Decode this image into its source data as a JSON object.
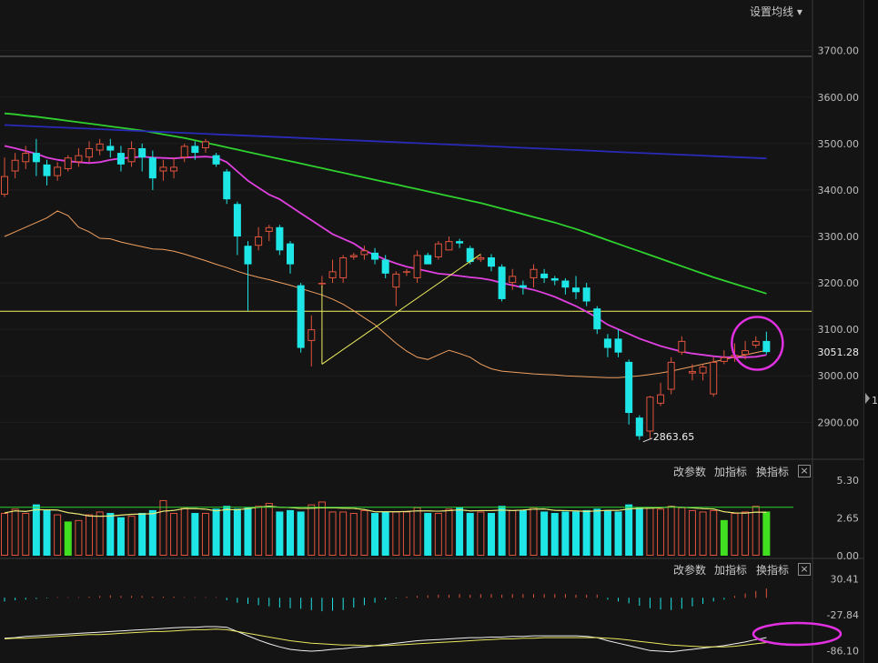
{
  "toolbar": {
    "ma_settings": "设置均线",
    "modify_params": "改参数",
    "add_indicator": "加指标",
    "switch_indicator": "换指标",
    "close": "×"
  },
  "colors": {
    "up": "#e0533d",
    "down": "#1ee6e6",
    "ma5": "#f0a060",
    "ma20": "#e040e0",
    "ma120": "#2ed12e",
    "ma250": "#2a2ab8",
    "annotation": "#e030e0",
    "trendline": "#f0f060",
    "green_bar": "#40e020"
  },
  "chart_data": [
    {
      "type": "candlestick",
      "y_ticks": [
        "3700.00",
        "3600.00",
        "3500.00",
        "3400.00",
        "3300.00",
        "3200.00",
        "3100.00",
        "3000.00",
        "2900.00"
      ],
      "ylim": [
        2830,
        3770
      ],
      "last_price_label": "3051.28",
      "low_annotation": "2863.65",
      "horizontal_line": 3139,
      "candles": [
        [
          3390,
          3430,
          3385,
          3470
        ],
        [
          3440,
          3465,
          3425,
          3480
        ],
        [
          3460,
          3480,
          3445,
          3495
        ],
        [
          3480,
          3460,
          3430,
          3510
        ],
        [
          3455,
          3430,
          3410,
          3465
        ],
        [
          3430,
          3450,
          3420,
          3460
        ],
        [
          3445,
          3470,
          3440,
          3475
        ],
        [
          3460,
          3475,
          3450,
          3490
        ],
        [
          3470,
          3490,
          3460,
          3505
        ],
        [
          3485,
          3500,
          3475,
          3510
        ],
        [
          3495,
          3485,
          3470,
          3510
        ],
        [
          3480,
          3455,
          3440,
          3495
        ],
        [
          3460,
          3490,
          3450,
          3505
        ],
        [
          3490,
          3470,
          3440,
          3500
        ],
        [
          3470,
          3425,
          3400,
          3485
        ],
        [
          3440,
          3450,
          3420,
          3465
        ],
        [
          3440,
          3450,
          3425,
          3470
        ],
        [
          3470,
          3495,
          3460,
          3500
        ],
        [
          3495,
          3480,
          3465,
          3505
        ],
        [
          3490,
          3505,
          3480,
          3510
        ],
        [
          3475,
          3455,
          3450,
          3480
        ],
        [
          3440,
          3380,
          3370,
          3445
        ],
        [
          3370,
          3300,
          3260,
          3375
        ],
        [
          3280,
          3240,
          3140,
          3290
        ],
        [
          3280,
          3300,
          3270,
          3320
        ],
        [
          3310,
          3320,
          3290,
          3325
        ],
        [
          3320,
          3270,
          3260,
          3325
        ],
        [
          3285,
          3240,
          3220,
          3290
        ],
        [
          3195,
          3060,
          3050,
          3200
        ],
        [
          3075,
          3100,
          3020,
          3130
        ],
        [
          3200,
          3200,
          3190,
          3215
        ],
        [
          3210,
          3225,
          3200,
          3250
        ],
        [
          3210,
          3255,
          3200,
          3260
        ],
        [
          3255,
          3260,
          3250,
          3265
        ],
        [
          3260,
          3270,
          3250,
          3280
        ],
        [
          3265,
          3250,
          3240,
          3275
        ],
        [
          3250,
          3220,
          3210,
          3260
        ],
        [
          3190,
          3220,
          3150,
          3225
        ],
        [
          3225,
          3225,
          3215,
          3230
        ],
        [
          3210,
          3260,
          3200,
          3270
        ],
        [
          3260,
          3240,
          3240,
          3265
        ],
        [
          3255,
          3285,
          3250,
          3290
        ],
        [
          3270,
          3290,
          3270,
          3300
        ],
        [
          3290,
          3285,
          3275,
          3295
        ],
        [
          3275,
          3245,
          3240,
          3280
        ],
        [
          3250,
          3255,
          3245,
          3260
        ],
        [
          3255,
          3235,
          3225,
          3262
        ],
        [
          3235,
          3165,
          3160,
          3240
        ],
        [
          3200,
          3215,
          3185,
          3230
        ],
        [
          3195,
          3190,
          3175,
          3205
        ],
        [
          3210,
          3230,
          3190,
          3240
        ],
        [
          3220,
          3210,
          3200,
          3230
        ],
        [
          3210,
          3205,
          3195,
          3215
        ],
        [
          3205,
          3190,
          3175,
          3210
        ],
        [
          3190,
          3180,
          3165,
          3215
        ],
        [
          3190,
          3160,
          3150,
          3200
        ],
        [
          3145,
          3100,
          3090,
          3150
        ],
        [
          3080,
          3060,
          3040,
          3090
        ],
        [
          3080,
          3050,
          3040,
          3100
        ],
        [
          3030,
          2920,
          2895,
          3035
        ],
        [
          2910,
          2870,
          2862,
          2915
        ],
        [
          2880,
          2955,
          2864,
          2957
        ],
        [
          2940,
          2960,
          2935,
          2985
        ],
        [
          2970,
          3030,
          2960,
          3040
        ],
        [
          3050,
          3075,
          3045,
          3085
        ],
        [
          3005,
          3010,
          2990,
          3025
        ],
        [
          3005,
          3020,
          2990,
          3025
        ],
        [
          2960,
          3030,
          2955,
          3040
        ],
        [
          3030,
          3040,
          3025,
          3055
        ],
        [
          3040,
          3045,
          3030,
          3070
        ],
        [
          3045,
          3055,
          3035,
          3075
        ],
        [
          3065,
          3075,
          3060,
          3085
        ],
        [
          3075,
          3051,
          3046,
          3095
        ]
      ],
      "series": [
        {
          "key": "ma5",
          "values": [
            3300,
            3310,
            3320,
            3330,
            3340,
            3355,
            3345,
            3320,
            3310,
            3296,
            3295,
            3288,
            3283,
            3278,
            3273,
            3272,
            3268,
            3262,
            3255,
            3248,
            3240,
            3233,
            3225,
            3218,
            3212,
            3207,
            3201,
            3195,
            3188,
            3181,
            3174,
            3165,
            3154,
            3140,
            3125,
            3110,
            3090,
            3070,
            3053,
            3040,
            3035,
            3045,
            3055,
            3048,
            3040,
            3025,
            3015,
            3010,
            3008,
            3006,
            3004,
            3003,
            3002,
            3000,
            2999,
            2998,
            2997,
            2996,
            2996,
            2998,
            3000,
            3003,
            3006,
            3010,
            3015,
            3020,
            3025,
            3030,
            3035,
            3040,
            3045,
            3050,
            3055
          ]
        },
        {
          "key": "ma20",
          "values": [
            3495,
            3490,
            3484,
            3478,
            3470,
            3465,
            3462,
            3460,
            3458,
            3460,
            3465,
            3468,
            3470,
            3472,
            3470,
            3469,
            3468,
            3470,
            3471,
            3472,
            3470,
            3460,
            3440,
            3420,
            3405,
            3390,
            3380,
            3365,
            3350,
            3335,
            3320,
            3305,
            3295,
            3285,
            3270,
            3260,
            3250,
            3242,
            3235,
            3230,
            3225,
            3220,
            3218,
            3215,
            3212,
            3210,
            3206,
            3200,
            3195,
            3190,
            3185,
            3178,
            3170,
            3160,
            3150,
            3138,
            3125,
            3110,
            3100,
            3090,
            3080,
            3072,
            3064,
            3058,
            3052,
            3048,
            3045,
            3042,
            3040,
            3040,
            3040,
            3041,
            3045
          ]
        },
        {
          "key": "ma120",
          "values": [
            3565,
            3563,
            3560,
            3558,
            3555,
            3552,
            3549,
            3546,
            3543,
            3540,
            3537,
            3534,
            3531,
            3528,
            3524,
            3520,
            3516,
            3512,
            3507,
            3502,
            3497,
            3492,
            3487,
            3482,
            3477,
            3472,
            3467,
            3462,
            3457,
            3452,
            3447,
            3442,
            3437,
            3432,
            3427,
            3422,
            3417,
            3412,
            3407,
            3402,
            3397,
            3392,
            3387,
            3382,
            3377,
            3372,
            3366,
            3360,
            3354,
            3348,
            3342,
            3336,
            3330,
            3323,
            3316,
            3308,
            3300,
            3292,
            3284,
            3276,
            3268,
            3260,
            3252,
            3244,
            3236,
            3228,
            3220,
            3212,
            3205,
            3198,
            3191,
            3184,
            3177
          ]
        },
        {
          "key": "ma250",
          "values": [
            3540,
            3539,
            3538,
            3537,
            3536,
            3535,
            3534,
            3533,
            3532,
            3531,
            3530,
            3529,
            3528,
            3527,
            3526,
            3525,
            3524,
            3523,
            3522,
            3521,
            3520,
            3519,
            3518,
            3517,
            3516,
            3515,
            3514,
            3513,
            3512,
            3511,
            3510,
            3509,
            3508,
            3507,
            3506,
            3505,
            3504,
            3503,
            3502,
            3501,
            3500,
            3499,
            3498,
            3497,
            3496,
            3495,
            3494,
            3493,
            3492,
            3491,
            3490,
            3489,
            3488,
            3487,
            3486,
            3485,
            3484,
            3483,
            3482,
            3481,
            3480,
            3479,
            3478,
            3477,
            3476,
            3475,
            3474,
            3473,
            3472,
            3471,
            3470,
            3469,
            3468
          ]
        }
      ]
    },
    {
      "type": "bar",
      "name": "volume",
      "y_ticks": [
        "5.30",
        "2.65",
        "0.00"
      ],
      "ylim": [
        0,
        5.3
      ],
      "values": [
        3.0,
        3.3,
        3.0,
        3.6,
        3.2,
        2.9,
        2.4,
        2.5,
        2.9,
        3.1,
        3.0,
        2.7,
        2.8,
        3.0,
        3.2,
        3.9,
        3.0,
        3.4,
        3.0,
        3.0,
        3.3,
        3.5,
        3.3,
        3.4,
        3.5,
        3.7,
        3.1,
        3.2,
        3.1,
        3.6,
        3.8,
        3.1,
        3.1,
        3.0,
        3.2,
        3.0,
        3.1,
        3.1,
        3.1,
        3.4,
        3.0,
        3.0,
        3.3,
        3.4,
        3.0,
        3.1,
        3.0,
        3.5,
        3.2,
        3.2,
        3.4,
        3.1,
        3.0,
        3.1,
        3.1,
        3.2,
        3.3,
        3.2,
        3.1,
        3.6,
        3.4,
        3.4,
        3.3,
        3.5,
        3.4,
        3.2,
        3.1,
        3.2,
        2.5,
        3.0,
        3.1,
        3.5,
        3.1
      ],
      "green_indexes": [
        6,
        68,
        72
      ]
    },
    {
      "type": "macd",
      "y_ticks": [
        "30.41",
        "-27.84",
        "-86.10"
      ],
      "ylim": [
        -90,
        33
      ],
      "hist": [
        -6,
        -4,
        -3,
        -2,
        -1,
        1,
        1,
        1,
        2,
        3,
        4,
        3,
        3,
        3,
        2,
        2,
        2,
        1,
        1,
        1,
        1,
        -4,
        -8,
        -10,
        -12,
        -14,
        -16,
        -17,
        -18,
        -20,
        -22,
        -21,
        -20,
        -16,
        -12,
        -8,
        -3,
        -1,
        2,
        3,
        4,
        5,
        5,
        6,
        5,
        6,
        6,
        5,
        6,
        6,
        6,
        6,
        6,
        6,
        5,
        5,
        5,
        -3,
        -6,
        -9,
        -13,
        -17,
        -19,
        -20,
        -18,
        -14,
        -10,
        -6,
        -3,
        3,
        7,
        11,
        15
      ],
      "dif": [
        -66,
        -65,
        -63,
        -62,
        -61,
        -60,
        -59,
        -58,
        -57,
        -56,
        -55,
        -54,
        -53,
        -52,
        -51,
        -50,
        -49,
        -48,
        -48,
        -47,
        -47,
        -48,
        -55,
        -62,
        -69,
        -75,
        -80,
        -84,
        -86,
        -87,
        -86,
        -84,
        -83,
        -81,
        -80,
        -78,
        -76,
        -74,
        -72,
        -70,
        -69,
        -68,
        -67,
        -66,
        -65,
        -65,
        -64,
        -64,
        -63,
        -63,
        -62,
        -62,
        -62,
        -62,
        -62,
        -63,
        -65,
        -70,
        -74,
        -78,
        -82,
        -86,
        -87,
        -88,
        -86,
        -84,
        -82,
        -80,
        -78,
        -75,
        -72,
        -68,
        -65
      ],
      "dea": [
        -67,
        -66,
        -66,
        -65,
        -64,
        -63,
        -62,
        -61,
        -60,
        -60,
        -59,
        -58,
        -57,
        -56,
        -55,
        -55,
        -54,
        -53,
        -52,
        -52,
        -51,
        -52,
        -55,
        -58,
        -61,
        -64,
        -67,
        -70,
        -72,
        -74,
        -75,
        -76,
        -77,
        -77,
        -78,
        -78,
        -78,
        -77,
        -76,
        -75,
        -74,
        -73,
        -72,
        -71,
        -70,
        -69,
        -68,
        -67,
        -67,
        -66,
        -66,
        -65,
        -65,
        -65,
        -65,
        -65,
        -65,
        -66,
        -67,
        -69,
        -71,
        -73,
        -75,
        -77,
        -78,
        -79,
        -80,
        -80,
        -80,
        -79,
        -77,
        -75,
        -73
      ]
    }
  ]
}
